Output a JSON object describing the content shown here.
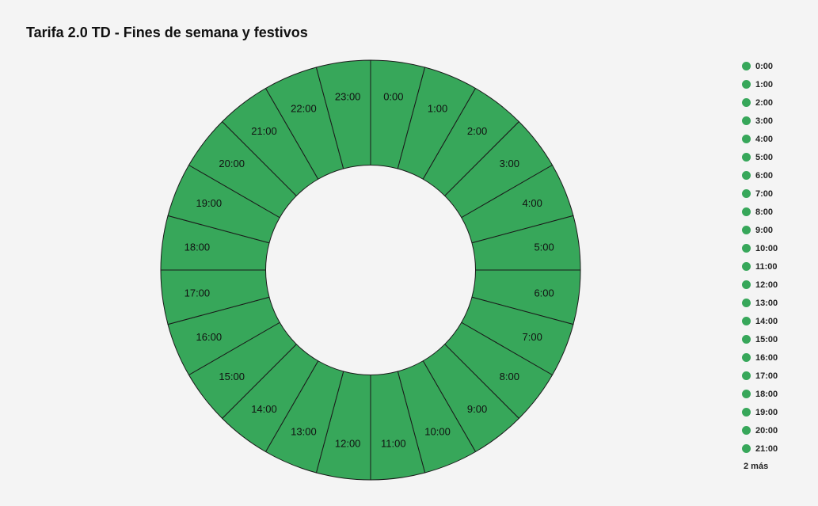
{
  "page": {
    "background_color": "#f4f4f4"
  },
  "title": "Tarifa 2.0 TD - Fines de semana y festivos",
  "chart_data": {
    "type": "pie",
    "subtype": "donut",
    "title": "Tarifa 2.0 TD - Fines de semana y festivos",
    "categories": [
      "0:00",
      "1:00",
      "2:00",
      "3:00",
      "4:00",
      "5:00",
      "6:00",
      "7:00",
      "8:00",
      "9:00",
      "10:00",
      "11:00",
      "12:00",
      "13:00",
      "14:00",
      "15:00",
      "16:00",
      "17:00",
      "18:00",
      "19:00",
      "20:00",
      "21:00",
      "22:00",
      "23:00"
    ],
    "values": [
      1,
      1,
      1,
      1,
      1,
      1,
      1,
      1,
      1,
      1,
      1,
      1,
      1,
      1,
      1,
      1,
      1,
      1,
      1,
      1,
      1,
      1,
      1,
      1
    ],
    "unit": "hours",
    "slice_color": "#37a75a",
    "slice_border_color": "#1a1a1a",
    "label_color": "#111111",
    "start_angle_deg": 0,
    "direction": "clockwise",
    "inner_radius_ratio": 0.5,
    "grid": "off",
    "legend_position": "right",
    "legend_entries": [
      "0:00",
      "1:00",
      "2:00",
      "3:00",
      "4:00",
      "5:00",
      "6:00",
      "7:00",
      "8:00",
      "9:00",
      "10:00",
      "11:00",
      "12:00",
      "13:00",
      "14:00",
      "15:00",
      "16:00",
      "17:00",
      "18:00",
      "19:00",
      "20:00",
      "21:00"
    ],
    "legend_overflow_label": "2 más"
  }
}
